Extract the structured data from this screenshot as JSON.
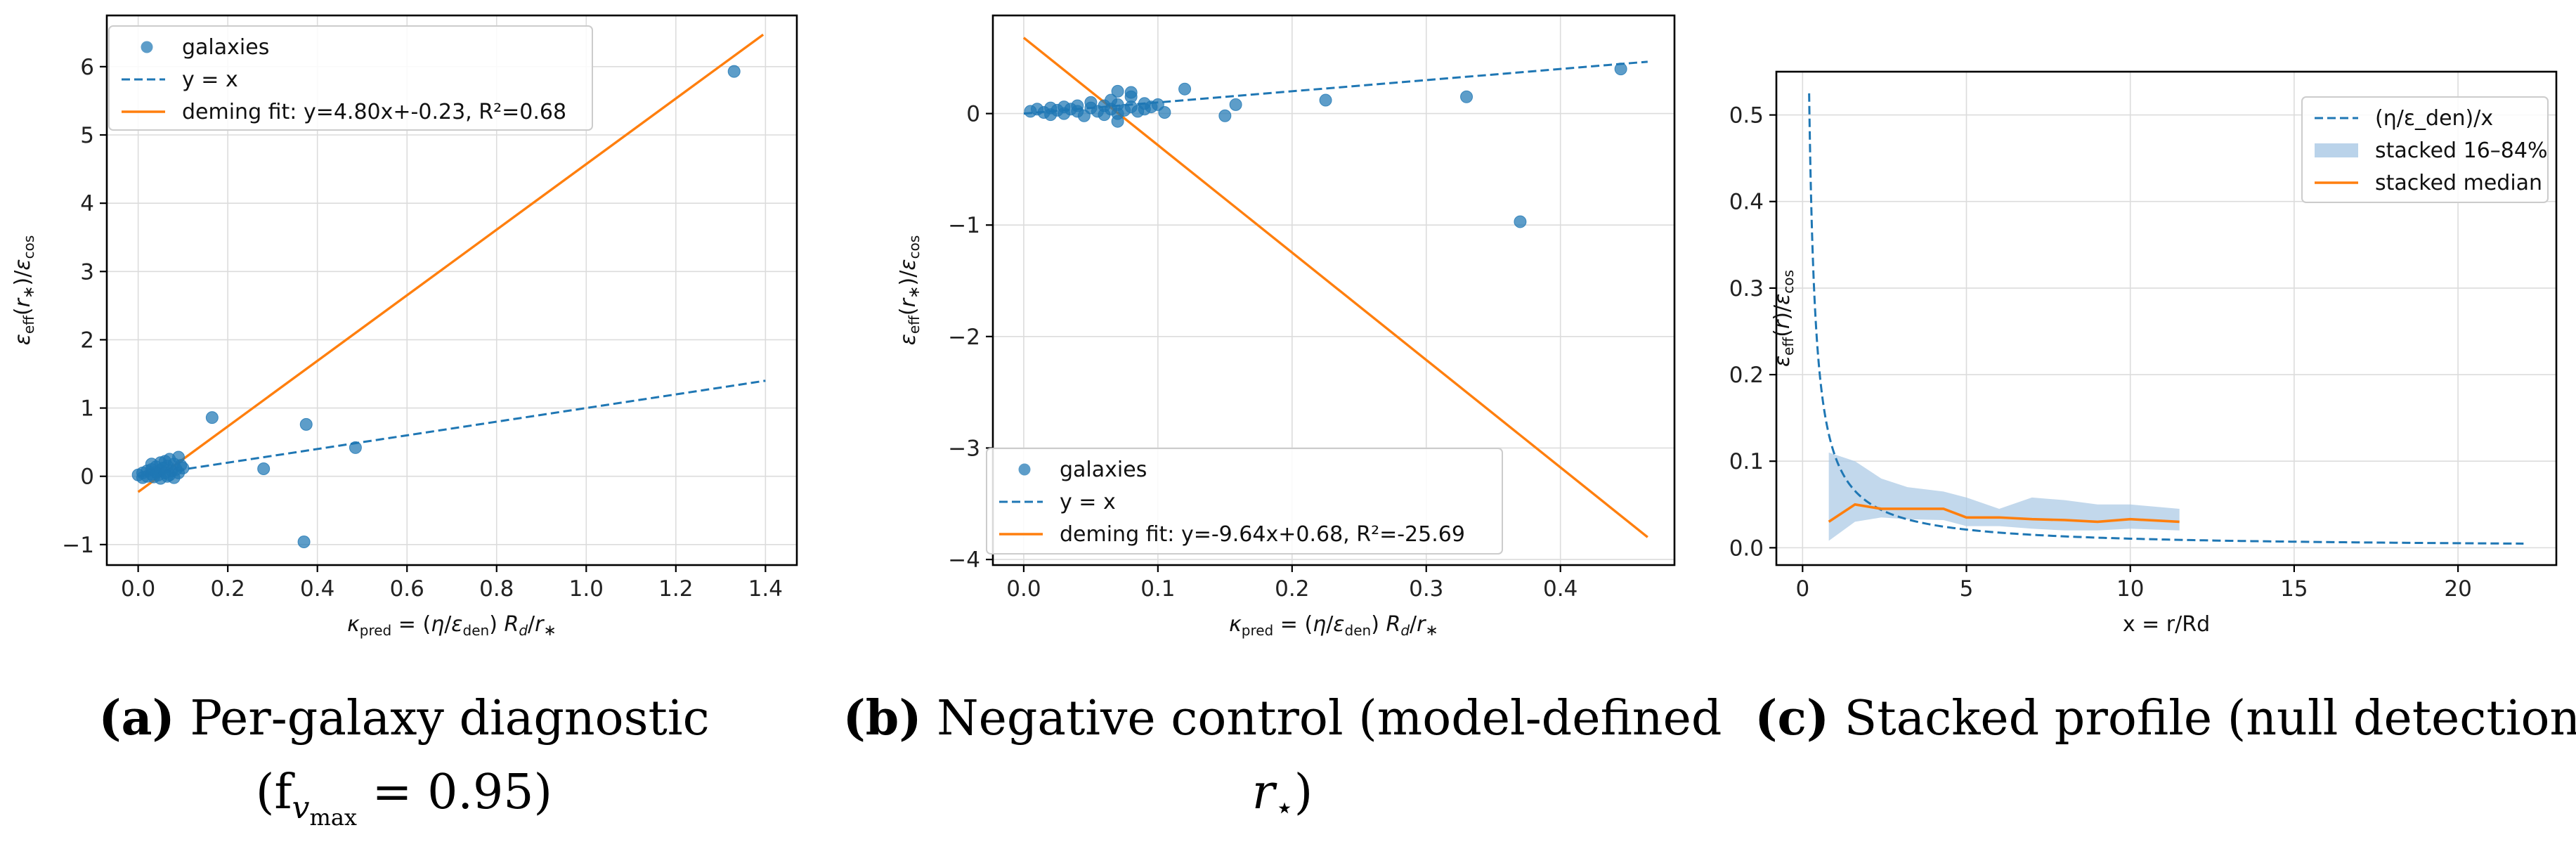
{
  "colors": {
    "blue": "#1f77b4",
    "orange": "#ff7f0e",
    "band": "#aecbe6"
  },
  "chart_data": [
    {
      "type": "scatter",
      "id": "a",
      "xlabel": "κ_pred = (η/ε_den) R_d/r_*",
      "ylabel": "ε_eff(r_*)/ε_cos",
      "xlim": [
        -0.07,
        1.47
      ],
      "ylim": [
        -1.3,
        6.75
      ],
      "xticks": [
        0.0,
        0.2,
        0.4,
        0.6,
        0.8,
        1.0,
        1.2,
        1.4
      ],
      "xtick_labels": [
        "0.0",
        "0.2",
        "0.4",
        "0.6",
        "0.8",
        "1.0",
        "1.2",
        "1.4"
      ],
      "yticks": [
        -1,
        0,
        1,
        2,
        3,
        4,
        5,
        6
      ],
      "ytick_labels": [
        "−1",
        "0",
        "1",
        "2",
        "3",
        "4",
        "5",
        "6"
      ],
      "points": [
        [
          0.0,
          0.02
        ],
        [
          0.01,
          0.05
        ],
        [
          0.01,
          -0.02
        ],
        [
          0.02,
          0.08
        ],
        [
          0.02,
          0.0
        ],
        [
          0.03,
          0.03
        ],
        [
          0.03,
          0.1
        ],
        [
          0.035,
          -0.01
        ],
        [
          0.04,
          0.06
        ],
        [
          0.04,
          0.14
        ],
        [
          0.045,
          0.02
        ],
        [
          0.05,
          0.09
        ],
        [
          0.05,
          -0.03
        ],
        [
          0.055,
          0.12
        ],
        [
          0.06,
          0.05
        ],
        [
          0.06,
          0.22
        ],
        [
          0.065,
          0.15
        ],
        [
          0.07,
          0.02
        ],
        [
          0.07,
          0.25
        ],
        [
          0.075,
          0.08
        ],
        [
          0.08,
          0.18
        ],
        [
          0.08,
          -0.02
        ],
        [
          0.085,
          0.1
        ],
        [
          0.09,
          0.28
        ],
        [
          0.09,
          0.05
        ],
        [
          0.095,
          0.16
        ],
        [
          0.1,
          0.12
        ],
        [
          0.03,
          0.18
        ],
        [
          0.05,
          0.2
        ],
        [
          0.065,
          0.0
        ],
        [
          0.165,
          0.86
        ],
        [
          0.28,
          0.11
        ],
        [
          0.37,
          -0.96
        ],
        [
          0.375,
          0.76
        ],
        [
          0.485,
          0.42
        ],
        [
          1.33,
          5.93
        ]
      ],
      "lines": [
        {
          "name": "y = x",
          "style": "dashed",
          "color": "#1f77b4",
          "x": [
            0.0,
            1.4
          ],
          "y": [
            0.0,
            1.4
          ]
        },
        {
          "name": "deming fit",
          "style": "solid",
          "color": "#ff7f0e",
          "x": [
            0.0,
            1.395
          ],
          "y": [
            -0.23,
            6.47
          ]
        }
      ],
      "legend": [
        "galaxies",
        "y = x",
        "deming fit: y=4.80x+-0.23, R²=0.68"
      ],
      "legend_position": "upper-left",
      "caption_letter": "(a)",
      "caption_line1": "Per-galaxy diagnostic",
      "caption_line2_pre": "(f",
      "caption_line2_sub": "v",
      "caption_line2_subsub": "max",
      "caption_line2_post": " = 0.95)"
    },
    {
      "type": "scatter",
      "id": "b",
      "xlabel": "κ_pred = (η/ε_den) R_d/r_*",
      "ylabel": "ε_eff(r_*)/ε_cos",
      "xlim": [
        -0.023,
        0.485
      ],
      "ylim": [
        -4.05,
        0.88
      ],
      "xticks": [
        0.0,
        0.1,
        0.2,
        0.3,
        0.4
      ],
      "xtick_labels": [
        "0.0",
        "0.1",
        "0.2",
        "0.3",
        "0.4"
      ],
      "yticks": [
        -4,
        -3,
        -2,
        -1,
        0
      ],
      "ytick_labels": [
        "−4",
        "−3",
        "−2",
        "−1",
        "0"
      ],
      "points": [
        [
          0.005,
          0.02
        ],
        [
          0.01,
          0.04
        ],
        [
          0.015,
          0.01
        ],
        [
          0.02,
          0.05
        ],
        [
          0.02,
          -0.01
        ],
        [
          0.025,
          0.03
        ],
        [
          0.03,
          0.06
        ],
        [
          0.03,
          0.0
        ],
        [
          0.035,
          0.04
        ],
        [
          0.04,
          0.02
        ],
        [
          0.04,
          0.07
        ],
        [
          0.045,
          -0.02
        ],
        [
          0.05,
          0.05
        ],
        [
          0.05,
          0.1
        ],
        [
          0.055,
          0.02
        ],
        [
          0.06,
          0.07
        ],
        [
          0.06,
          -0.01
        ],
        [
          0.065,
          0.04
        ],
        [
          0.065,
          0.12
        ],
        [
          0.07,
          0.0
        ],
        [
          0.07,
          0.08
        ],
        [
          0.075,
          0.03
        ],
        [
          0.08,
          0.06
        ],
        [
          0.08,
          0.15
        ],
        [
          0.085,
          0.02
        ],
        [
          0.09,
          0.09
        ],
        [
          0.09,
          0.04
        ],
        [
          0.095,
          0.06
        ],
        [
          0.1,
          0.08
        ],
        [
          0.07,
          0.2
        ],
        [
          0.07,
          -0.07
        ],
        [
          0.08,
          0.19
        ],
        [
          0.105,
          0.01
        ],
        [
          0.12,
          0.22
        ],
        [
          0.15,
          -0.02
        ],
        [
          0.158,
          0.08
        ],
        [
          0.225,
          0.12
        ],
        [
          0.33,
          0.15
        ],
        [
          0.37,
          -0.97
        ],
        [
          0.445,
          0.4
        ]
      ],
      "lines": [
        {
          "name": "y = x",
          "style": "dashed",
          "color": "#1f77b4",
          "x": [
            0.0,
            0.465
          ],
          "y": [
            0.0,
            0.465
          ]
        },
        {
          "name": "deming fit",
          "style": "solid",
          "color": "#ff7f0e",
          "x": [
            0.0,
            0.465
          ],
          "y": [
            0.68,
            -3.8
          ]
        }
      ],
      "legend": [
        "galaxies",
        "y = x",
        "deming fit: y=-9.64x+0.68, R²=-25.69"
      ],
      "legend_position": "lower-left",
      "caption_letter": "(b)",
      "caption_line1": "Negative control (model-defined",
      "caption_line2_pre": "r",
      "caption_line2_sub": "⋆",
      "caption_line2_post": ")"
    },
    {
      "type": "line",
      "id": "c",
      "xlabel": "x = r/Rd",
      "ylabel": "ε_eff(r)/ε_cos",
      "xlim": [
        -0.8,
        23.0
      ],
      "ylim": [
        -0.02,
        0.55
      ],
      "xticks": [
        0,
        5,
        10,
        15,
        20
      ],
      "xtick_labels": [
        "0",
        "5",
        "10",
        "15",
        "20"
      ],
      "yticks": [
        0.0,
        0.1,
        0.2,
        0.3,
        0.4,
        0.5
      ],
      "ytick_labels": [
        "0.0",
        "0.1",
        "0.2",
        "0.3",
        "0.4",
        "0.5"
      ],
      "series": [
        {
          "name": "(η/ε_den)/x",
          "style": "dashed",
          "color": "#1f77b4",
          "coef": 0.105,
          "x_range": [
            0.2,
            22
          ]
        },
        {
          "name": "stacked median",
          "style": "solid",
          "color": "#ff7f0e",
          "x": [
            0.8,
            1.6,
            2.4,
            3.2,
            4.3,
            5.0,
            6.0,
            7.0,
            8.0,
            9.0,
            10.0,
            11.5
          ],
          "y": [
            0.03,
            0.05,
            0.045,
            0.045,
            0.045,
            0.035,
            0.035,
            0.033,
            0.032,
            0.03,
            0.033,
            0.03
          ]
        }
      ],
      "band": {
        "name": "stacked 16–84%",
        "x": [
          0.8,
          1.6,
          2.4,
          3.2,
          4.3,
          5.0,
          6.0,
          7.0,
          8.0,
          9.0,
          10.0,
          11.5
        ],
        "lower": [
          0.008,
          0.03,
          0.035,
          0.033,
          0.032,
          0.025,
          0.025,
          0.022,
          0.02,
          0.02,
          0.022,
          0.02
        ],
        "upper": [
          0.11,
          0.1,
          0.08,
          0.07,
          0.065,
          0.058,
          0.045,
          0.058,
          0.055,
          0.05,
          0.05,
          0.045
        ]
      },
      "legend": [
        "(η/ε_den)/x",
        "stacked 16–84%",
        "stacked median"
      ],
      "legend_position": "upper-right",
      "caption_letter": "(c)",
      "caption_line1": "Stacked profile (null detection)"
    }
  ]
}
